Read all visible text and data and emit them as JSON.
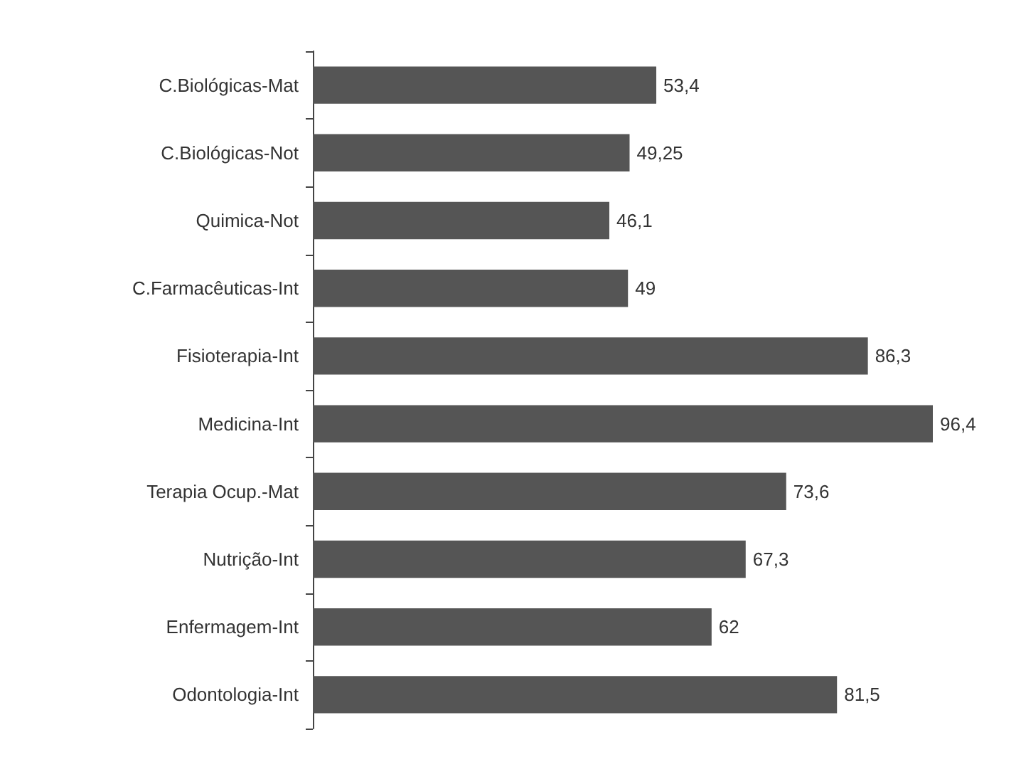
{
  "chart_data": {
    "type": "bar",
    "orientation": "horizontal",
    "categories": [
      "C.Biológicas-Mat",
      "C.Biológicas-Not",
      "Quimica-Not",
      "C.Farmacêuticas-Int",
      "Fisioterapia-Int",
      "Medicina-Int",
      "Terapia Ocup.-Mat",
      "Nutrição-Int",
      "Enfermagem-Int",
      "Odontologia-Int"
    ],
    "values": [
      53.4,
      49.25,
      46.1,
      49,
      86.3,
      96.4,
      73.6,
      67.3,
      62,
      81.5
    ],
    "value_labels": [
      "53,4",
      "49,25",
      "46,1",
      "49",
      "86,3",
      "96,4",
      "73,6",
      "67,3",
      "62",
      "81,5"
    ],
    "color": "#555555"
  }
}
